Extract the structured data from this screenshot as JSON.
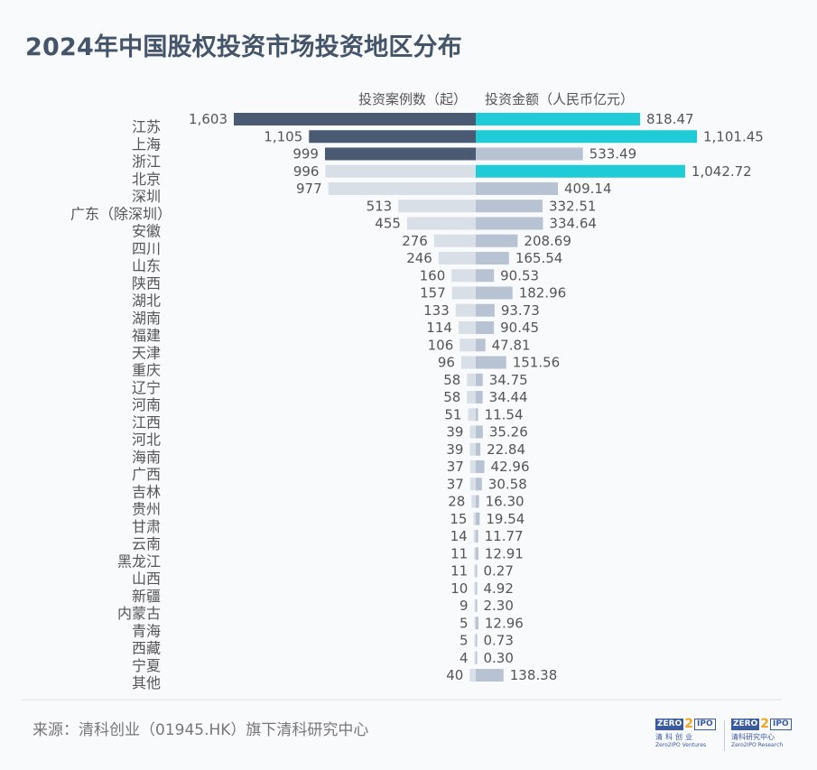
{
  "title": "2024年中国股权投资市场投资地区分布",
  "colors": {
    "title": "#44546a",
    "count_highlight": "#4a5a72",
    "count_normal": "#d9dfe7",
    "amount_highlight": "#1fcbd6",
    "amount_normal": "#b7c2d3",
    "label_text": "#555555"
  },
  "chart_data": {
    "type": "bar",
    "orientation": "horizontal-diverging",
    "title": "2024年中国股权投资市场投资地区分布",
    "categories": [
      "江苏",
      "上海",
      "浙江",
      "北京",
      "深圳",
      "广东（除深圳）",
      "安徽",
      "四川",
      "山东",
      "陕西",
      "湖北",
      "湖南",
      "福建",
      "天津",
      "重庆",
      "辽宁",
      "河南",
      "江西",
      "河北",
      "海南",
      "广西",
      "吉林",
      "贵州",
      "甘肃",
      "云南",
      "黑龙江",
      "山西",
      "新疆",
      "内蒙古",
      "青海",
      "西藏",
      "宁夏",
      "其他"
    ],
    "series": [
      {
        "name": "投资案例数（起）",
        "side": "left",
        "values": [
          1603,
          1105,
          999,
          996,
          977,
          513,
          455,
          276,
          246,
          160,
          157,
          133,
          114,
          106,
          96,
          58,
          58,
          51,
          39,
          39,
          37,
          37,
          28,
          15,
          14,
          11,
          11,
          10,
          9,
          5,
          5,
          4,
          40
        ],
        "labels": [
          "1,603",
          "1,105",
          "999",
          "996",
          "977",
          "513",
          "455",
          "276",
          "246",
          "160",
          "157",
          "133",
          "114",
          "106",
          "96",
          "58",
          "58",
          "51",
          "39",
          "39",
          "37",
          "37",
          "28",
          "15",
          "14",
          "11",
          "11",
          "10",
          "9",
          "5",
          "5",
          "4",
          "40"
        ],
        "highlighted": [
          0,
          1,
          2
        ]
      },
      {
        "name": "投资金额（人民币亿元）",
        "side": "right",
        "values": [
          818.47,
          1101.45,
          533.49,
          1042.72,
          409.14,
          332.51,
          334.64,
          208.69,
          165.54,
          90.53,
          182.96,
          93.73,
          90.45,
          47.81,
          151.56,
          34.75,
          34.44,
          11.54,
          35.26,
          22.84,
          42.96,
          30.58,
          16.3,
          19.54,
          11.77,
          12.91,
          0.27,
          4.92,
          2.3,
          12.96,
          0.73,
          0.3,
          138.38
        ],
        "labels": [
          "818.47",
          "1,101.45",
          "533.49",
          "1,042.72",
          "409.14",
          "332.51",
          "334.64",
          "208.69",
          "165.54",
          "90.53",
          "182.96",
          "93.73",
          "90.45",
          "47.81",
          "151.56",
          "34.75",
          "34.44",
          "11.54",
          "35.26",
          "22.84",
          "42.96",
          "30.58",
          "16.30",
          "19.54",
          "11.77",
          "12.91",
          "0.27",
          "4.92",
          "2.30",
          "12.96",
          "0.73",
          "0.30",
          "138.38"
        ],
        "highlighted": [
          0,
          1,
          3
        ]
      }
    ],
    "xlabel": "",
    "ylabel": "",
    "count_range": [
      0,
      1603
    ],
    "amount_range": [
      0,
      1101.45
    ],
    "grid": false,
    "legend": "top-center"
  },
  "footer": {
    "source": "来源：清科创业（01945.HK）旗下清科研究中心"
  },
  "logos": [
    {
      "zero": "ZERO",
      "two": "2",
      "ipo": "IPO",
      "cn": "清科创业",
      "en": "Zero2IPO Ventures"
    },
    {
      "zero": "ZERO",
      "two": "2",
      "ipo": "IPO",
      "cn": "清科研究中心",
      "en": "Zero2IPO Research"
    }
  ]
}
